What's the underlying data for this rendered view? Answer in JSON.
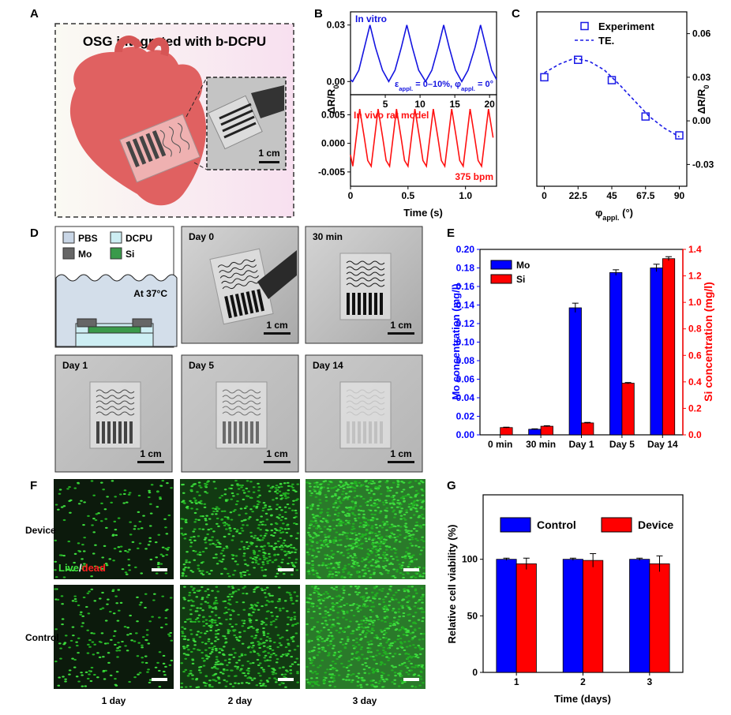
{
  "figure": {
    "panels": [
      "A",
      "B",
      "C",
      "D",
      "E",
      "F",
      "G"
    ]
  },
  "panel_a": {
    "title": "OSG integrated with b-DCPU",
    "scale_bar": "1 cm"
  },
  "panel_d": {
    "legend": [
      "PBS",
      "DCPU",
      "Mo",
      "Si"
    ],
    "condition": "At 37°C",
    "photos": [
      {
        "label": "Day 0",
        "scale_bar": "1 cm"
      },
      {
        "label": "30 min",
        "scale_bar": "1 cm"
      },
      {
        "label": "Day 1",
        "scale_bar": "1 cm"
      },
      {
        "label": "Day 5",
        "scale_bar": "1 cm"
      },
      {
        "label": "Day 14",
        "scale_bar": "1 cm"
      }
    ]
  },
  "panel_f": {
    "rows": [
      "Device",
      "Control"
    ],
    "columns": [
      "1 day",
      "2 day",
      "3 day"
    ],
    "stain": [
      "Live",
      "/",
      "dead"
    ]
  },
  "chart_data": [
    {
      "type": "line",
      "x": [
        0,
        0.3,
        1.2,
        2.0,
        2.8,
        3.6,
        4.6,
        5.5,
        6.4,
        7.3,
        8.1,
        8.9,
        9.8,
        10.8,
        11.7,
        12.6,
        13.4,
        14.2,
        15.1,
        16.0,
        16.9,
        17.9,
        18.7,
        19.5,
        20.3,
        21.0
      ],
      "series": [
        {
          "color": "#1414e0",
          "values": [
            0.001,
            0,
            0.006,
            0.018,
            0.03,
            0.018,
            0.006,
            0,
            0.006,
            0.018,
            0.03,
            0.018,
            0.006,
            0,
            0.006,
            0.018,
            0.03,
            0.018,
            0.006,
            0,
            0.006,
            0.018,
            0.03,
            0.018,
            0.006,
            0.001
          ]
        }
      ],
      "xlim": [
        0,
        21
      ],
      "xticks": [
        5,
        10,
        15,
        20
      ],
      "ylim": [
        -0.007,
        0.037
      ],
      "yticks": [
        {
          "value": 0,
          "label": "0.00"
        },
        0.03
      ],
      "ylabel": [
        "ΔR/R",
        "0"
      ],
      "annotation": "In vitro",
      "condition": [
        "ε",
        "appl.",
        " = 0–10%, φ",
        "appl.",
        " = 0°"
      ]
    },
    {
      "type": "line",
      "x": [
        0,
        0.02,
        0.08,
        0.12,
        0.15,
        0.18,
        0.24,
        0.28,
        0.31,
        0.34,
        0.4,
        0.44,
        0.47,
        0.5,
        0.56,
        0.6,
        0.63,
        0.66,
        0.72,
        0.76,
        0.79,
        0.82,
        0.88,
        0.92,
        0.95,
        0.98,
        1.04,
        1.08,
        1.11,
        1.14,
        1.2,
        1.24
      ],
      "series": [
        {
          "color": "#ff1010",
          "values": [
            -0.002,
            -0.004,
            0.006,
            0.001,
            -0.003,
            -0.004,
            0.006,
            0.001,
            -0.003,
            -0.004,
            0.006,
            0.001,
            -0.003,
            -0.004,
            0.006,
            0.001,
            -0.003,
            -0.004,
            0.006,
            0.001,
            -0.003,
            -0.004,
            0.006,
            0.001,
            -0.003,
            -0.004,
            0.006,
            0.001,
            -0.003,
            -0.004,
            0.006,
            0.001
          ]
        }
      ],
      "xlim": [
        0,
        1.27
      ],
      "xticks": [
        0,
        0.5,
        {
          "value": 1,
          "label": "1.0"
        }
      ],
      "xlabel": "Time (s)",
      "ylim": [
        -0.0075,
        0.0085
      ],
      "yticks": [
        -0.005,
        {
          "value": 0,
          "label": "0.000"
        },
        0.005
      ],
      "annotation": "In vivo rat model",
      "rate": "375 bpm"
    },
    {
      "type": "scatter",
      "series": [
        {
          "name": "Experiment",
          "color": "#1a1ae6",
          "style": "markers",
          "x": [
            0,
            22.5,
            45,
            67.5,
            90
          ],
          "values": [
            0.03,
            0.042,
            0.028,
            0.003,
            -0.01
          ]
        },
        {
          "name": "TE.",
          "color": "#1a1ae6",
          "style": "dashed",
          "x": [
            0,
            10,
            20,
            30,
            40,
            50,
            60,
            70,
            80,
            90
          ],
          "values": [
            0.033,
            0.039,
            0.043,
            0.041,
            0.035,
            0.025,
            0.014,
            0.003,
            -0.005,
            -0.011
          ]
        }
      ],
      "xlim": [
        -5,
        95
      ],
      "xticks": [
        0,
        22.5,
        45,
        67.5,
        90
      ],
      "xlabel": [
        "φ",
        "appl.",
        " (°)"
      ],
      "ylim": [
        -0.045,
        0.075
      ],
      "yticks": [
        -0.03,
        {
          "value": 0,
          "label": "0.00"
        },
        0.03,
        0.06
      ],
      "ylabel": [
        "ΔR/R",
        "0"
      ],
      "y_axis_side": "right",
      "legend": "upper right"
    },
    {
      "type": "bar",
      "categories": [
        "0 min",
        "30 min",
        "Day 1",
        "Day 5",
        "Day 14"
      ],
      "series": [
        {
          "name": "Mo",
          "color": "#0000ff",
          "values": [
            0,
            0.006,
            0.137,
            0.175,
            0.18
          ],
          "errors": [
            0,
            0.0005,
            0.005,
            0.003,
            0.004
          ]
        },
        {
          "name": "Si",
          "color": "#ff0000",
          "axis": "y2",
          "values": [
            0.055,
            0.065,
            0.09,
            0.39,
            1.33
          ],
          "errors": [
            0.003,
            0.004,
            0.004,
            0.005,
            0.015
          ]
        }
      ],
      "ylim": [
        0,
        0.2
      ],
      "yticks": [
        {
          "value": 0,
          "label": "0.00"
        },
        0.02,
        0.04,
        0.06,
        0.08,
        {
          "value": 0.1,
          "label": "0.10"
        },
        0.12,
        0.14,
        0.16,
        0.18,
        {
          "value": 0.2,
          "label": "0.20"
        }
      ],
      "y2lim": [
        0,
        1.4
      ],
      "y2ticks": [
        {
          "value": 0,
          "label": "0.0"
        },
        0.2,
        0.4,
        0.6,
        0.8,
        {
          "value": 1,
          "label": "1.0"
        },
        1.2,
        1.4
      ],
      "ylabel": "Mo concentration (mg/l)",
      "y2label": "Si concentration (mg/l)",
      "legend": "upper left"
    },
    {
      "type": "bar",
      "categories": [
        "1",
        "2",
        "3"
      ],
      "series": [
        {
          "name": "Control",
          "color": "#0000ff",
          "values": [
            100,
            100,
            100
          ],
          "errors": [
            1,
            1,
            1
          ]
        },
        {
          "name": "Device",
          "color": "#ff0000",
          "values": [
            96,
            99,
            96
          ],
          "errors": [
            5,
            6,
            7
          ]
        }
      ],
      "ylim": [
        0,
        157
      ],
      "yticks": [
        0,
        50,
        100
      ],
      "xlabel": "Time (days)",
      "ylabel": "Relative cell viability (%)",
      "legend": "upper center"
    }
  ]
}
